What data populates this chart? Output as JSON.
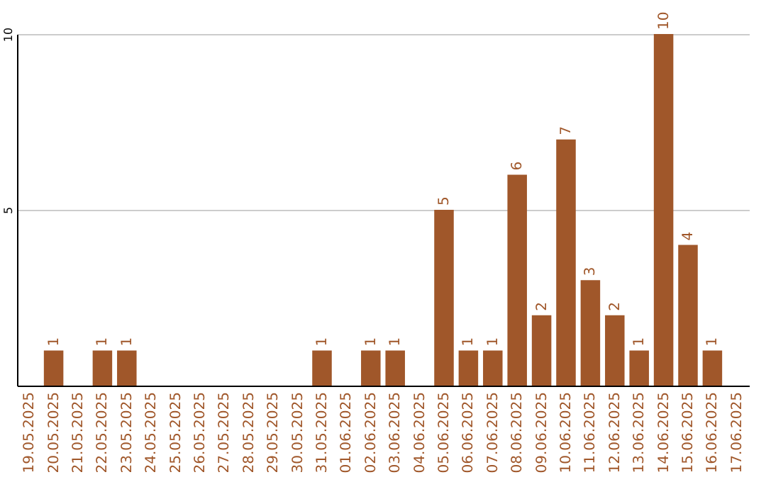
{
  "chart_data": {
    "type": "bar",
    "categories": [
      "19.05.2025",
      "20.05.2025",
      "21.05.2025",
      "22.05.2025",
      "23.05.2025",
      "24.05.2025",
      "25.05.2025",
      "26.05.2025",
      "27.05.2025",
      "28.05.2025",
      "29.05.2025",
      "30.05.2025",
      "31.05.2025",
      "01.06.2025",
      "02.06.2025",
      "03.06.2025",
      "04.06.2025",
      "05.06.2025",
      "06.06.2025",
      "07.06.2025",
      "08.06.2025",
      "09.06.2025",
      "10.06.2025",
      "11.06.2025",
      "12.06.2025",
      "13.06.2025",
      "14.06.2025",
      "15.06.2025",
      "16.06.2025",
      "17.06.2025"
    ],
    "values": [
      null,
      1,
      null,
      1,
      1,
      null,
      null,
      null,
      null,
      null,
      null,
      null,
      1,
      null,
      1,
      1,
      null,
      5,
      1,
      1,
      6,
      2,
      7,
      3,
      2,
      1,
      10,
      4,
      1,
      null
    ],
    "color": "#a0572a",
    "ylim": [
      0,
      10
    ],
    "yticks": [
      5,
      10
    ],
    "grid": "y",
    "data_labels": true
  }
}
